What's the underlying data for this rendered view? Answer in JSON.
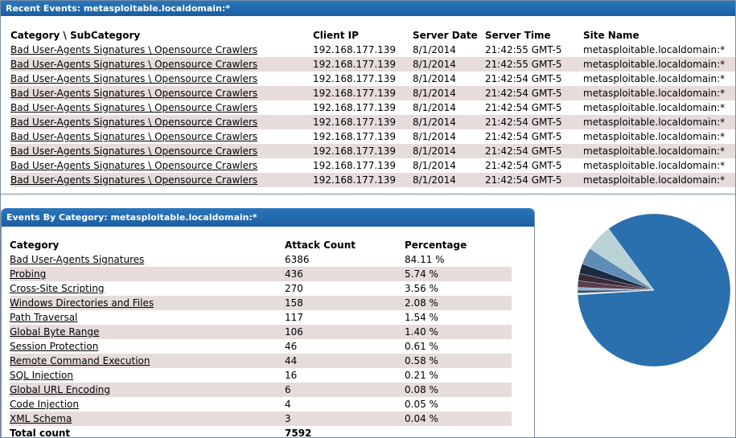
{
  "recent_events": {
    "title": "Recent Events: metasploitable.localdomain:*",
    "columns": [
      "Category \\ SubCategory",
      "Client IP",
      "Server Date",
      "Server Time",
      "Site Name"
    ],
    "rows": [
      {
        "category": "Bad User-Agents Signatures \\ Opensource Crawlers",
        "client_ip": "192.168.177.139",
        "server_date": "8/1/2014",
        "server_time": "21:42:55 GMT-5",
        "site_name": "metasploitable.localdomain:*"
      },
      {
        "category": "Bad User-Agents Signatures \\ Opensource Crawlers",
        "client_ip": "192.168.177.139",
        "server_date": "8/1/2014",
        "server_time": "21:42:55 GMT-5",
        "site_name": "metasploitable.localdomain:*"
      },
      {
        "category": "Bad User-Agents Signatures \\ Opensource Crawlers",
        "client_ip": "192.168.177.139",
        "server_date": "8/1/2014",
        "server_time": "21:42:54 GMT-5",
        "site_name": "metasploitable.localdomain:*"
      },
      {
        "category": "Bad User-Agents Signatures \\ Opensource Crawlers",
        "client_ip": "192.168.177.139",
        "server_date": "8/1/2014",
        "server_time": "21:42:54 GMT-5",
        "site_name": "metasploitable.localdomain:*"
      },
      {
        "category": "Bad User-Agents Signatures \\ Opensource Crawlers",
        "client_ip": "192.168.177.139",
        "server_date": "8/1/2014",
        "server_time": "21:42:54 GMT-5",
        "site_name": "metasploitable.localdomain:*"
      },
      {
        "category": "Bad User-Agents Signatures \\ Opensource Crawlers",
        "client_ip": "192.168.177.139",
        "server_date": "8/1/2014",
        "server_time": "21:42:54 GMT-5",
        "site_name": "metasploitable.localdomain:*"
      },
      {
        "category": "Bad User-Agents Signatures \\ Opensource Crawlers",
        "client_ip": "192.168.177.139",
        "server_date": "8/1/2014",
        "server_time": "21:42:54 GMT-5",
        "site_name": "metasploitable.localdomain:*"
      },
      {
        "category": "Bad User-Agents Signatures \\ Opensource Crawlers",
        "client_ip": "192.168.177.139",
        "server_date": "8/1/2014",
        "server_time": "21:42:54 GMT-5",
        "site_name": "metasploitable.localdomain:*"
      },
      {
        "category": "Bad User-Agents Signatures \\ Opensource Crawlers",
        "client_ip": "192.168.177.139",
        "server_date": "8/1/2014",
        "server_time": "21:42:54 GMT-5",
        "site_name": "metasploitable.localdomain:*"
      },
      {
        "category": "Bad User-Agents Signatures \\ Opensource Crawlers",
        "client_ip": "192.168.177.139",
        "server_date": "8/1/2014",
        "server_time": "21:42:54 GMT-5",
        "site_name": "metasploitable.localdomain:*"
      }
    ]
  },
  "events_by_category": {
    "title": "Events By Category: metasploitable.localdomain:*",
    "columns": [
      "Category",
      "Attack Count",
      "Percentage"
    ],
    "rows": [
      {
        "category": "Bad User-Agents Signatures",
        "count": "6386",
        "percentage": "84.11 %"
      },
      {
        "category": "Probing",
        "count": "436",
        "percentage": "5.74 %"
      },
      {
        "category": "Cross-Site Scripting",
        "count": "270",
        "percentage": "3.56 %"
      },
      {
        "category": "Windows Directories and Files",
        "count": "158",
        "percentage": "2.08 %"
      },
      {
        "category": "Path Traversal",
        "count": "117",
        "percentage": "1.54 %"
      },
      {
        "category": "Global Byte Range",
        "count": "106",
        "percentage": "1.40 %"
      },
      {
        "category": "Session Protection",
        "count": "46",
        "percentage": "0.61 %"
      },
      {
        "category": "Remote Command Execution",
        "count": "44",
        "percentage": "0.58 %"
      },
      {
        "category": "SQL Injection",
        "count": "16",
        "percentage": "0.21 %"
      },
      {
        "category": "Global URL Encoding",
        "count": "6",
        "percentage": "0.08 %"
      },
      {
        "category": "Code Injection",
        "count": "4",
        "percentage": "0.05 %"
      },
      {
        "category": "XML Schema",
        "count": "3",
        "percentage": "0.04 %"
      }
    ],
    "total_label": "Total count",
    "total_value": "7592"
  },
  "chart_data": {
    "type": "pie",
    "categories": [
      "Bad User-Agents Signatures",
      "Probing",
      "Cross-Site Scripting",
      "Windows Directories and Files",
      "Path Traversal",
      "Global Byte Range",
      "Session Protection",
      "Remote Command Execution",
      "SQL Injection",
      "Global URL Encoding",
      "Code Injection",
      "XML Schema"
    ],
    "values": [
      6386,
      436,
      270,
      158,
      117,
      106,
      46,
      44,
      16,
      6,
      4,
      3
    ],
    "colors": [
      "#2a6fae",
      "#b9d2d6",
      "#5d8cb4",
      "#1b2b44",
      "#3b2a38",
      "#5a3d4e",
      "#8fb2c9",
      "#2e4a6a",
      "#d0c8d8",
      "#7a6a7a",
      "#a0b8cc",
      "#c0d4e0"
    ]
  }
}
